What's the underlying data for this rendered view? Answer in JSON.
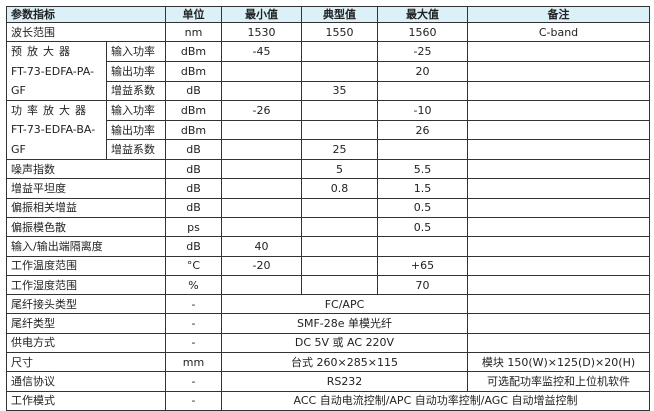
{
  "headers": [
    "参数指标",
    "单位",
    "最小值",
    "典型值",
    "最大值",
    "备注"
  ],
  "wavelength": {
    "label": "波长范围",
    "unit": "nm",
    "min": "1530",
    "typ": "1550",
    "max": "1560",
    "note": "C-band"
  },
  "preamp": {
    "title": "预放大器",
    "model": "FT-73-EDFA-PA-GF",
    "rows": [
      {
        "label": "输入功率",
        "unit": "dBm",
        "min": "-45",
        "typ": "",
        "max": "-25"
      },
      {
        "label": "输出功率",
        "unit": "dBm",
        "min": "",
        "typ": "",
        "max": "20"
      },
      {
        "label": "增益系数",
        "unit": "dB",
        "min": "",
        "typ": "35",
        "max": ""
      }
    ]
  },
  "booster": {
    "title": "功率放大器",
    "model": "FT-73-EDFA-BA-GF",
    "rows": [
      {
        "label": "输入功率",
        "unit": "dBm",
        "min": "-26",
        "typ": "",
        "max": "-10"
      },
      {
        "label": "输出功率",
        "unit": "dBm",
        "min": "",
        "typ": "",
        "max": "26"
      },
      {
        "label": "增益系数",
        "unit": "dB",
        "min": "",
        "typ": "25",
        "max": ""
      }
    ]
  },
  "rows": [
    {
      "label": "噪声指数",
      "unit": "dB",
      "min": "",
      "typ": "5",
      "max": "5.5",
      "note": ""
    },
    {
      "label": "增益平坦度",
      "unit": "dB",
      "min": "",
      "typ": "0.8",
      "max": "1.5",
      "note": ""
    },
    {
      "label": "偏振相关增益",
      "unit": "dB",
      "min": "",
      "typ": "",
      "max": "0.5",
      "note": ""
    },
    {
      "label": "偏振模色散",
      "unit": "ps",
      "min": "",
      "typ": "",
      "max": "0.5",
      "note": ""
    },
    {
      "label": "输入/输出端隔离度",
      "unit": "dB",
      "min": "40",
      "typ": "",
      "max": "",
      "note": ""
    },
    {
      "label": "工作温度范围",
      "unit": "°C",
      "min": "-20",
      "typ": "",
      "max": "+65",
      "note": ""
    },
    {
      "label": "工作湿度范围",
      "unit": "%",
      "min": "",
      "typ": "",
      "max": "70",
      "note": ""
    }
  ],
  "merged": [
    {
      "label": "尾纤接头类型",
      "unit": "-",
      "value": "FC/APC",
      "note": ""
    },
    {
      "label": "尾纤类型",
      "unit": "-",
      "value": "SMF-28e 单模光纤",
      "note": ""
    },
    {
      "label": "供电方式",
      "unit": "-",
      "value": "DC 5V 或 AC 220V",
      "note": ""
    },
    {
      "label": "尺寸",
      "unit": "mm",
      "value": "台式 260×285×115",
      "note": "模块 150(W)×125(D)×20(H)"
    },
    {
      "label": "通信协议",
      "unit": "-",
      "value": "RS232",
      "note": "可选配功率监控和上位机软件"
    }
  ],
  "mode": {
    "label": "工作模式",
    "unit": "-",
    "value": "ACC 自动电流控制/APC 自动功率控制/AGC 自动增益控制"
  }
}
